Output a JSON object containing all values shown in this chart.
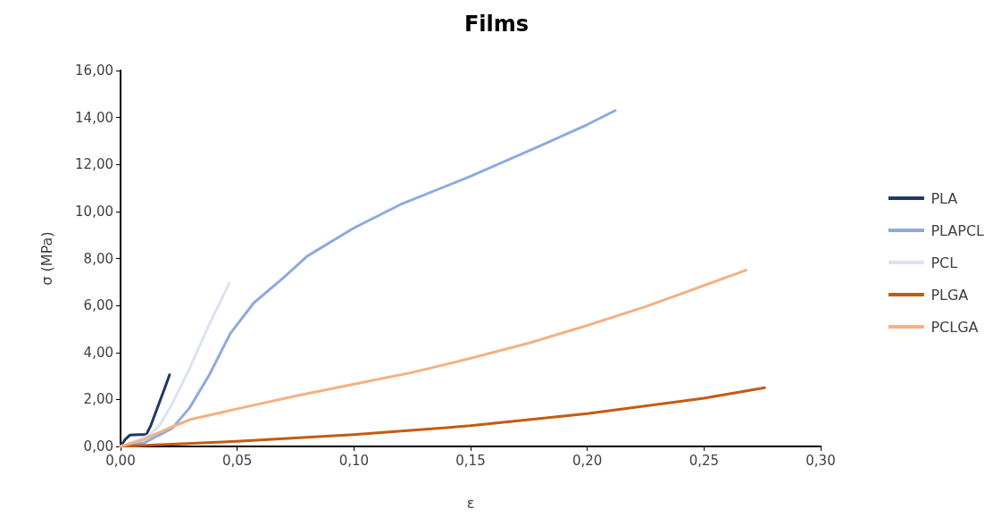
{
  "chart_data": {
    "type": "line",
    "title": "Films",
    "xlabel": "ε",
    "ylabel": "σ (MPa)",
    "legend": "right",
    "grid": false,
    "marker": "none",
    "line_style": "solid",
    "xlim": [
      0,
      0.3
    ],
    "ylim": [
      0,
      16
    ],
    "xticks": [
      {
        "value": 0,
        "label": "0,00"
      },
      {
        "value": 0.05,
        "label": "0,05"
      },
      {
        "value": 0.1,
        "label": "0,10"
      },
      {
        "value": 0.15,
        "label": "0,15"
      },
      {
        "value": 0.2,
        "label": "0,20"
      },
      {
        "value": 0.25,
        "label": "0,25"
      },
      {
        "value": 0.3,
        "label": "0,30"
      }
    ],
    "yticks": [
      {
        "value": 0,
        "label": "0,00"
      },
      {
        "value": 2,
        "label": "2,00"
      },
      {
        "value": 4,
        "label": "4,00"
      },
      {
        "value": 6,
        "label": "6,00"
      },
      {
        "value": 8,
        "label": "8,00"
      },
      {
        "value": 10,
        "label": "10,00"
      },
      {
        "value": 12,
        "label": "12,00"
      },
      {
        "value": 14,
        "label": "14,00"
      },
      {
        "value": 16,
        "label": "16,00"
      }
    ],
    "series": [
      {
        "name": "PLA",
        "color": "#203864",
        "x": [
          0,
          0.002,
          0.004,
          0.008,
          0.011,
          0.013,
          0.016,
          0.019,
          0.021
        ],
        "values": [
          0,
          0.3,
          0.48,
          0.5,
          0.5,
          0.9,
          1.7,
          2.5,
          3.05
        ]
      },
      {
        "name": "PLAPCL",
        "color": "#8faadc",
        "x": [
          0,
          0.01,
          0.022,
          0.0295,
          0.038,
          0.047,
          0.057,
          0.07,
          0.08,
          0.1,
          0.12,
          0.15,
          0.18,
          0.2,
          0.212
        ],
        "values": [
          0,
          0.15,
          0.76,
          1.63,
          3.04,
          4.8,
          6.1,
          7.2,
          8.1,
          9.3,
          10.3,
          11.5,
          12.8,
          13.7,
          14.3
        ]
      },
      {
        "name": "PCL",
        "color": "#dae3f3",
        "x": [
          0,
          0.006,
          0.0126,
          0.0165,
          0.022,
          0.0295,
          0.038,
          0.0467
        ],
        "values": [
          0,
          0.2,
          0.5,
          0.87,
          1.79,
          3.3,
          5.2,
          6.96
        ]
      },
      {
        "name": "PLGA",
        "color": "#c55a11",
        "x": [
          0,
          0.05,
          0.1,
          0.15,
          0.2,
          0.25,
          0.276
        ],
        "values": [
          0,
          0.22,
          0.5,
          0.88,
          1.4,
          2.05,
          2.5
        ]
      },
      {
        "name": "PCLGA",
        "color": "#f4b183",
        "x": [
          0,
          0.01,
          0.02,
          0.03,
          0.05,
          0.075,
          0.1,
          0.125,
          0.15,
          0.175,
          0.2,
          0.225,
          0.25,
          0.268
        ],
        "values": [
          0,
          0.3,
          0.75,
          1.15,
          1.6,
          2.15,
          2.65,
          3.15,
          3.75,
          4.4,
          5.15,
          5.95,
          6.85,
          7.5
        ]
      }
    ]
  }
}
